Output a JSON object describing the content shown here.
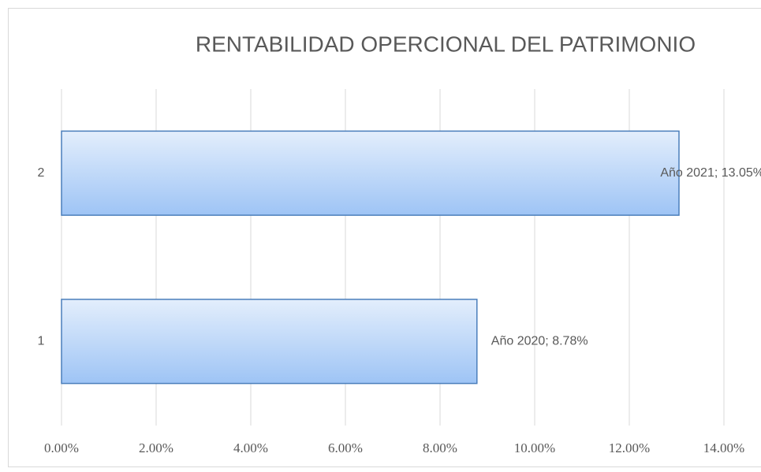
{
  "chart_data": {
    "type": "bar",
    "orientation": "horizontal",
    "title": "RENTABILIDAD OPERCIONAL DEL PATRIMONIO",
    "categories": [
      "1",
      "2"
    ],
    "values": [
      8.78,
      13.05
    ],
    "value_labels": [
      "Año 2020; 8.78%",
      "Año 2021; 13.05%"
    ],
    "color": "#9ec4f5",
    "xlim": [
      0,
      14
    ],
    "xticks": [
      {
        "value": 0,
        "label": "0.00%"
      },
      {
        "value": 2,
        "label": "2.00%"
      },
      {
        "value": 4,
        "label": "4.00%"
      },
      {
        "value": 6,
        "label": "6.00%"
      },
      {
        "value": 8,
        "label": "8.00%"
      },
      {
        "value": 10,
        "label": "10.00%"
      },
      {
        "value": 12,
        "label": "12.00%"
      },
      {
        "value": 14,
        "label": "14.00%"
      }
    ],
    "grid": true
  }
}
